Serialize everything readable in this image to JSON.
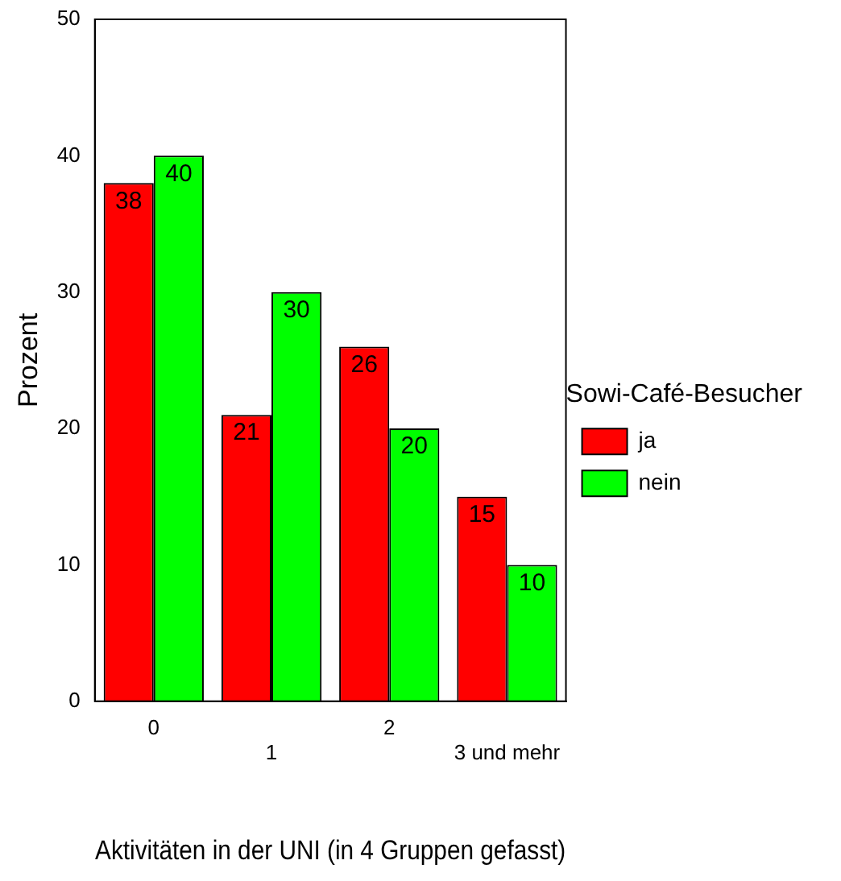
{
  "chart_data": {
    "type": "bar",
    "xlabel": "Aktivitäten in der UNI (in 4 Gruppen gefasst)",
    "ylabel": "Prozent",
    "legend_title": "Sowi-Café-Besucher",
    "categories": [
      "0",
      "1",
      "2",
      "3 und mehr"
    ],
    "series": [
      {
        "name": "ja",
        "color": "#ff0000",
        "values": [
          38,
          21,
          26,
          15
        ]
      },
      {
        "name": "nein",
        "color": "#00ff00",
        "values": [
          40,
          30,
          20,
          10
        ]
      }
    ],
    "ylim": [
      0,
      50
    ],
    "yticks": [
      0,
      10,
      20,
      30,
      40,
      50
    ],
    "grid": false,
    "legend": "right",
    "data_labels": true
  }
}
